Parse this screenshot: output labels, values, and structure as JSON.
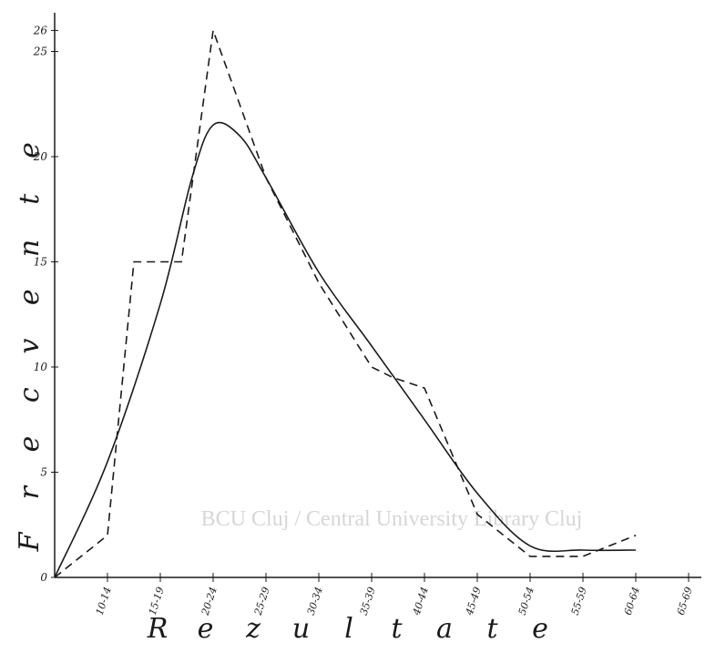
{
  "chart_data": {
    "type": "line",
    "title": "",
    "xlabel": "R e z u l t a t e",
    "ylabel": "F r e c v e n t e",
    "categories": [
      "10-14",
      "15-19",
      "20-24",
      "25-29",
      "30-34",
      "35-39",
      "40-44",
      "45-49",
      "50-54",
      "55-59",
      "60-64",
      "65-69"
    ],
    "x_positions": [
      0,
      1,
      2,
      3,
      4,
      5,
      6,
      7,
      8,
      9,
      10,
      11,
      12
    ],
    "y_ticks": [
      0,
      5,
      10,
      15,
      20,
      25,
      26
    ],
    "ylim": [
      0,
      26
    ],
    "grid": false,
    "series": [
      {
        "name": "",
        "style": "dashed",
        "points": [
          [
            0,
            0
          ],
          [
            1,
            2
          ],
          [
            1.5,
            15
          ],
          [
            2.4,
            15
          ],
          [
            3,
            26
          ],
          [
            4,
            19
          ],
          [
            5,
            14
          ],
          [
            6,
            10
          ],
          [
            6.4,
            9.5
          ],
          [
            7,
            9
          ],
          [
            8,
            3
          ],
          [
            9,
            1
          ],
          [
            10,
            1
          ],
          [
            11,
            2
          ]
        ]
      },
      {
        "name": "",
        "style": "solid",
        "points": [
          [
            0,
            0
          ],
          [
            1,
            5.5
          ],
          [
            2,
            13
          ],
          [
            2.6,
            19
          ],
          [
            3,
            21.5
          ],
          [
            3.5,
            21
          ],
          [
            4,
            19
          ],
          [
            5,
            14.5
          ],
          [
            6,
            11
          ],
          [
            7,
            7.5
          ],
          [
            8,
            4
          ],
          [
            9,
            1.5
          ],
          [
            10,
            1.3
          ],
          [
            11,
            1.3
          ]
        ]
      }
    ]
  },
  "axis_letters": {
    "y": [
      "F",
      "r",
      "e",
      "c",
      "v",
      "e",
      "n",
      "t",
      "e"
    ],
    "x": [
      "R",
      "e",
      "z",
      "u",
      "l",
      "t",
      "a",
      "t",
      "e"
    ]
  },
  "watermark": "BCU Cluj / Central University Library Cluj",
  "colors": {
    "ink": "#1a1a1a",
    "watermark": "#d6d6d6"
  }
}
